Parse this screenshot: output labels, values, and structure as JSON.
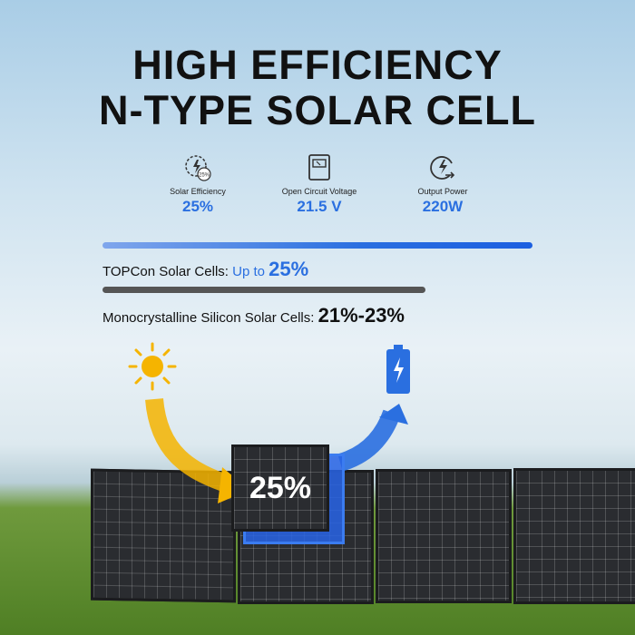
{
  "title": {
    "line1": "HIGH EFFICIENCY",
    "line2": "N-TYPE SOLAR CELL"
  },
  "stats": [
    {
      "icon": "sun-gear-efficiency-icon",
      "icon_text": "25%",
      "label": "Solar Efficiency",
      "value": "25%"
    },
    {
      "icon": "voltmeter-icon",
      "label": "Open Circuit Voltage",
      "value": "21.5 V"
    },
    {
      "icon": "power-output-icon",
      "label": "Output Power",
      "value": "220W"
    }
  ],
  "comparison": [
    {
      "label": "TOPCon Solar Cells: ",
      "prefix": "Up to ",
      "value": "25%",
      "level_percent": 25,
      "color": "#2a6fe0"
    },
    {
      "label": "Monocrystalline Silicon Solar Cells: ",
      "value": "21%-23%",
      "level_percent": 23,
      "color": "#555555"
    }
  ],
  "illustration": {
    "cell_label": "25%",
    "sun_icon": "sun-icon",
    "battery_icon": "battery-charging-icon",
    "accent": "#2a6fe0",
    "sun_color": "#f5b400"
  }
}
